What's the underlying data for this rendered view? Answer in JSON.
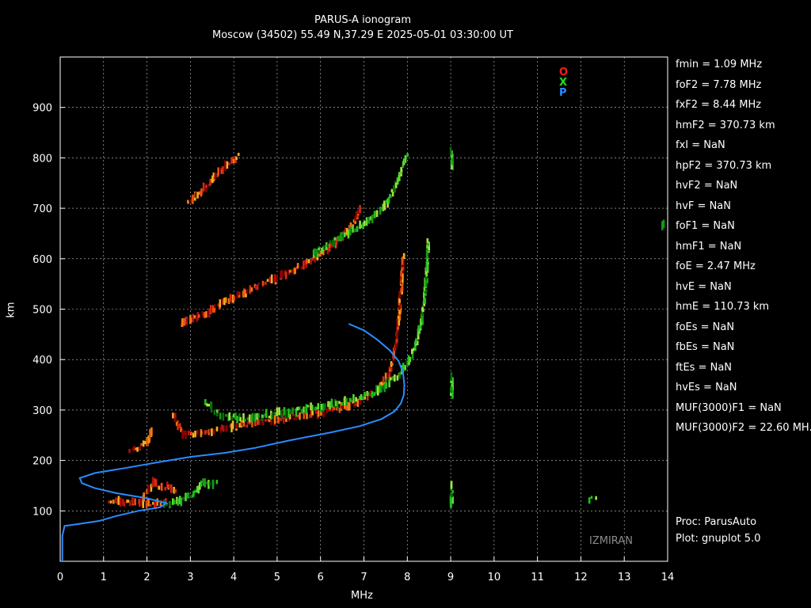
{
  "header": {
    "title": "PARUS-A ionogram",
    "subtitle": "Moscow (34502) 55.49 N,37.29 E   2025-05-01 03:30:00 UT"
  },
  "axes": {
    "xlabel": "MHz",
    "ylabel": "km",
    "xlim": [
      0,
      14
    ],
    "ylim": [
      0,
      1000
    ],
    "xticks": [
      0,
      1,
      2,
      3,
      4,
      5,
      6,
      7,
      8,
      9,
      10,
      11,
      12,
      13,
      14
    ],
    "yticks": [
      100,
      200,
      300,
      400,
      500,
      600,
      700,
      800,
      900
    ],
    "grid": true
  },
  "legend": [
    {
      "label": "O",
      "color": "#ff1a1a"
    },
    {
      "label": "X",
      "color": "#22dd22"
    },
    {
      "label": "P",
      "color": "#2a8cff"
    }
  ],
  "parameters": [
    "fmin = 1.09 MHz",
    "foF2 = 7.78 MHz",
    "fxF2 = 8.44 MHz",
    "hmF2 = 370.73 km",
    "fxI  = NaN",
    "hpF2 = 370.73 km",
    "hvF2 = NaN",
    "hvF  = NaN",
    "foF1 = NaN",
    "hmF1 = NaN",
    "foE  = 2.47 MHz",
    "hvE  = NaN",
    "hmE  = 110.73 km",
    "foEs = NaN",
    "fbEs = NaN",
    "ftEs = NaN",
    "hvEs = NaN",
    "MUF(3000)F1 = NaN",
    "MUF(3000)F2 = 22.60 MH."
  ],
  "footer": [
    "Proc: ParusAuto",
    "Plot: gnuplot 5.0"
  ],
  "watermark": "IZMIRAN",
  "colors": {
    "o_trace": "#ff1a1a",
    "x_trace": "#22dd22",
    "profile": "#2a8cff",
    "grid": "#ffffff",
    "bg": "#000000"
  },
  "chart_data": {
    "type": "scatter",
    "series": [
      {
        "name": "O",
        "mode": "O",
        "traces": [
          [
            [
              1.1,
              118
            ],
            [
              1.3,
              117
            ],
            [
              1.6,
              118
            ],
            [
              1.9,
              116
            ],
            [
              2.2,
              114
            ],
            [
              2.45,
              118
            ]
          ],
          [
            [
              1.6,
              218
            ],
            [
              1.8,
              225
            ],
            [
              2.0,
              240
            ],
            [
              2.1,
              260
            ]
          ],
          [
            [
              2.6,
              288
            ],
            [
              2.8,
              252
            ],
            [
              3.2,
              255
            ],
            [
              3.8,
              264
            ],
            [
              4.5,
              275
            ],
            [
              5.2,
              284
            ],
            [
              5.8,
              292
            ],
            [
              6.4,
              303
            ],
            [
              6.9,
              318
            ],
            [
              7.3,
              340
            ],
            [
              7.55,
              372
            ],
            [
              7.7,
              420
            ],
            [
              7.8,
              500
            ],
            [
              7.85,
              560
            ],
            [
              7.88,
              610
            ]
          ],
          [
            [
              2.75,
              470
            ],
            [
              3.2,
              485
            ],
            [
              3.8,
              515
            ],
            [
              4.5,
              545
            ],
            [
              5.2,
              570
            ],
            [
              5.8,
              597
            ],
            [
              6.3,
              630
            ],
            [
              6.7,
              665
            ],
            [
              6.9,
              700
            ]
          ],
          [
            [
              2.9,
              708
            ],
            [
              3.3,
              740
            ],
            [
              3.7,
              775
            ],
            [
              4.1,
              808
            ]
          ],
          [
            [
              1.9,
              128
            ],
            [
              2.0,
              140
            ],
            [
              2.15,
              160
            ],
            [
              2.3,
              145
            ],
            [
              2.5,
              150
            ],
            [
              2.65,
              138
            ]
          ]
        ]
      },
      {
        "name": "X",
        "mode": "X",
        "traces": [
          [
            [
              2.4,
              112
            ],
            [
              2.7,
              118
            ],
            [
              3.0,
              130
            ],
            [
              3.3,
              160
            ],
            [
              3.45,
              150
            ],
            [
              3.6,
              158
            ]
          ],
          [
            [
              3.35,
              315
            ],
            [
              3.6,
              290
            ],
            [
              4.2,
              282
            ],
            [
              5.0,
              293
            ],
            [
              5.8,
              305
            ],
            [
              6.6,
              318
            ],
            [
              7.3,
              338
            ],
            [
              7.8,
              370
            ],
            [
              8.1,
              410
            ],
            [
              8.3,
              470
            ],
            [
              8.4,
              540
            ],
            [
              8.45,
              600
            ],
            [
              8.47,
              640
            ]
          ],
          [
            [
              5.8,
              610
            ],
            [
              6.4,
              640
            ],
            [
              7.0,
              670
            ],
            [
              7.4,
              700
            ],
            [
              7.7,
              740
            ],
            [
              7.9,
              790
            ],
            [
              8.0,
              810
            ]
          ],
          [
            [
              9.0,
              780
            ],
            [
              9.0,
              815
            ]
          ],
          [
            [
              9.0,
              110
            ],
            [
              9.0,
              155
            ]
          ],
          [
            [
              9.0,
              330
            ],
            [
              9.0,
              370
            ]
          ],
          [
            [
              12.2,
              122
            ],
            [
              12.35,
              125
            ]
          ],
          [
            [
              13.85,
              668
            ],
            [
              13.9,
              675
            ]
          ]
        ]
      },
      {
        "name": "P",
        "mode": "P",
        "points": [
          [
            0.05,
            0
          ],
          [
            0.05,
            50
          ],
          [
            0.1,
            70
          ],
          [
            0.5,
            75
          ],
          [
            0.9,
            80
          ],
          [
            1.3,
            90
          ],
          [
            1.8,
            100
          ],
          [
            2.3,
            107
          ],
          [
            2.45,
            115
          ],
          [
            2.0,
            125
          ],
          [
            1.3,
            135
          ],
          [
            0.8,
            145
          ],
          [
            0.5,
            155
          ],
          [
            0.45,
            165
          ],
          [
            0.8,
            175
          ],
          [
            1.5,
            185
          ],
          [
            2.3,
            197
          ],
          [
            3.0,
            207
          ],
          [
            3.8,
            215
          ],
          [
            4.5,
            225
          ],
          [
            5.3,
            240
          ],
          [
            6.2,
            255
          ],
          [
            6.9,
            268
          ],
          [
            7.4,
            282
          ],
          [
            7.7,
            297
          ],
          [
            7.85,
            313
          ],
          [
            7.92,
            330
          ],
          [
            7.93,
            350
          ],
          [
            7.9,
            375
          ],
          [
            7.8,
            397
          ],
          [
            7.6,
            418
          ],
          [
            7.3,
            440
          ],
          [
            7.0,
            458
          ],
          [
            6.65,
            471
          ]
        ]
      }
    ]
  }
}
